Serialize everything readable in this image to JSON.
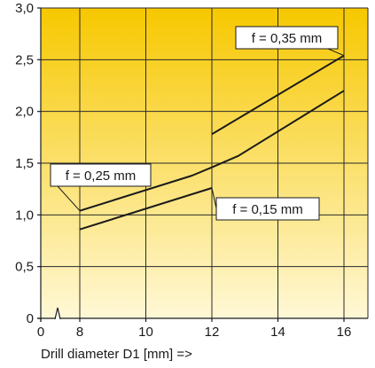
{
  "chart_data": {
    "type": "line",
    "xlabel": "Drill diameter D1 [mm] =>",
    "ylabel": "",
    "title": "",
    "xlim": [
      0,
      16
    ],
    "ylim": [
      0,
      3.0
    ],
    "axis_break_x": true,
    "x_ticks": [
      {
        "value": 0,
        "label": "0"
      },
      {
        "value": 8,
        "label": "8"
      },
      {
        "value": 10,
        "label": "10"
      },
      {
        "value": 12,
        "label": "12"
      },
      {
        "value": 14,
        "label": "14"
      },
      {
        "value": 16,
        "label": "16"
      }
    ],
    "y_ticks": [
      {
        "value": 0,
        "label": "0"
      },
      {
        "value": 0.5,
        "label": "0,5"
      },
      {
        "value": 1.0,
        "label": "1,0"
      },
      {
        "value": 1.5,
        "label": "1,5"
      },
      {
        "value": 2.0,
        "label": "2,0"
      },
      {
        "value": 2.5,
        "label": "2,5"
      },
      {
        "value": 3.0,
        "label": "3,0"
      }
    ],
    "grid": true,
    "background_gradient": [
      "#f7c800",
      "#fff8d6"
    ],
    "line_color": "#1a1a1a",
    "series": [
      {
        "label": "f = 0,25 mm",
        "x": [
          8,
          11.4,
          12,
          12.8,
          16
        ],
        "y": [
          1.04,
          1.38,
          1.46,
          1.57,
          2.2
        ]
      },
      {
        "label": "f = 0,15 mm",
        "x": [
          8,
          12
        ],
        "y": [
          0.86,
          1.26
        ]
      },
      {
        "label": "f = 0,35 mm",
        "x": [
          12,
          16
        ],
        "y": [
          1.78,
          2.54
        ]
      }
    ]
  }
}
